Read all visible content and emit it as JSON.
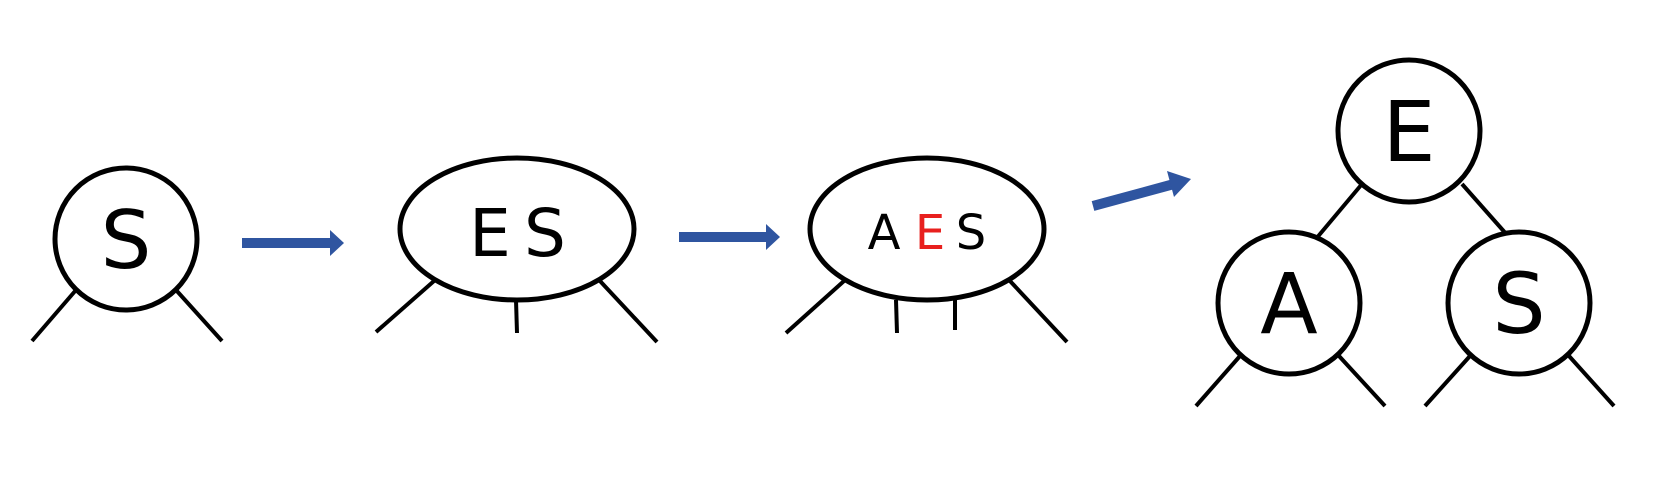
{
  "colors": {
    "arrow": "#2f55a0",
    "key_default": "#000000",
    "key_highlight": "#e8201e"
  },
  "stages": [
    {
      "keys": [
        {
          "text": "S",
          "highlight": false
        }
      ]
    },
    {
      "keys": [
        {
          "text": "E",
          "highlight": false
        },
        {
          "text": "S",
          "highlight": false
        }
      ]
    },
    {
      "keys": [
        {
          "text": "A",
          "highlight": false
        },
        {
          "text": "E",
          "highlight": true
        },
        {
          "text": "S",
          "highlight": false
        }
      ]
    }
  ],
  "result_tree": {
    "root": {
      "text": "E"
    },
    "left": {
      "text": "A"
    },
    "right": {
      "text": "S"
    }
  }
}
